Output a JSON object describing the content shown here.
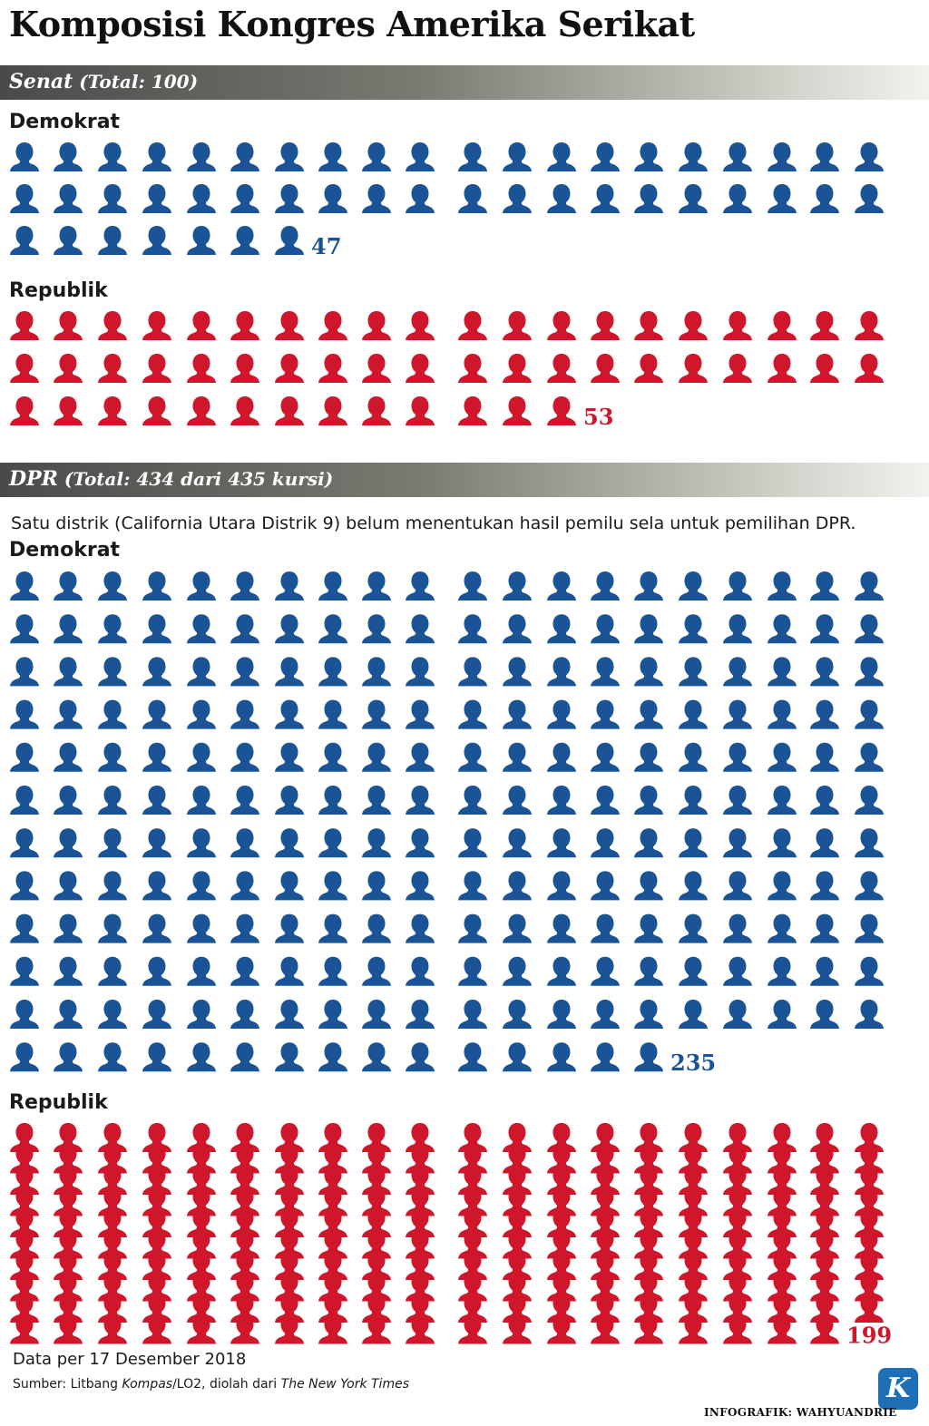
{
  "title": "Komposisi Kongres Amerika Serikat",
  "senate": {
    "header_name": "Senat",
    "header_total": "(Total: 100)",
    "dem_label": "Demokrat",
    "rep_label": "Republik"
  },
  "house": {
    "header_name": "DPR",
    "header_total": "(Total: 434 dari 435 kursi)",
    "note": "Satu distrik (California Utara Distrik 9) belum menentukan hasil pemilu sela untuk pemilihan DPR.",
    "dem_label": "Demokrat",
    "rep_label": "Republik"
  },
  "colors": {
    "democrat": "#1a5496",
    "republican": "#d0162a"
  },
  "icon_name": "person-icon",
  "chart_data": [
    {
      "type": "pictogram",
      "title": "Senat (Total: 100)",
      "series": [
        {
          "name": "Demokrat",
          "value": 47,
          "label": "47"
        },
        {
          "name": "Republik",
          "value": 53,
          "label": "53"
        }
      ]
    },
    {
      "type": "pictogram",
      "title": "DPR (Total: 434 dari 435 kursi)",
      "series": [
        {
          "name": "Demokrat",
          "value": 235,
          "label": "235"
        },
        {
          "name": "Republik",
          "value": 199,
          "label": "199"
        }
      ]
    }
  ],
  "footer": {
    "date": "Data per 17 Desember 2018",
    "source_prefix": "Sumber: Litbang ",
    "source_kompas": "Kompas",
    "source_mid": "/LO2, diolah dari ",
    "source_nyt": "The New York Times",
    "logo_letter": "K",
    "credit": "INFOGRAFIK: WAHYUANDRIE"
  }
}
